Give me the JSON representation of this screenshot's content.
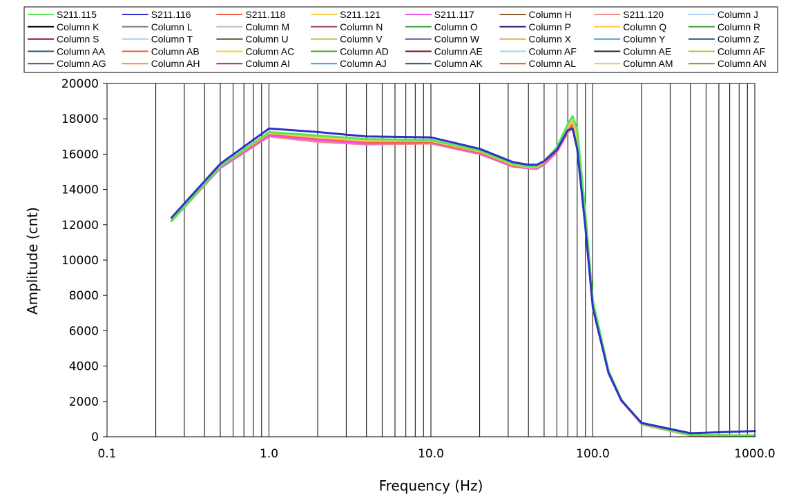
{
  "chart_data": {
    "type": "line",
    "xlabel": "Frequency (Hz)",
    "ylabel": "Amplitude  (cnt)",
    "x_scale": "log",
    "xlim": [
      0.1,
      1000
    ],
    "ylim": [
      0,
      20000
    ],
    "x_ticks": [
      0.1,
      1,
      10,
      100,
      1000
    ],
    "x_tick_labels": [
      "0.1",
      "1.0",
      "10.0",
      "100.0",
      "1000.0"
    ],
    "y_ticks": [
      0,
      2000,
      4000,
      6000,
      8000,
      10000,
      12000,
      14000,
      16000,
      18000,
      20000
    ],
    "y_tick_labels": [
      "0",
      "2000",
      "4000",
      "6000",
      "8000",
      "10000",
      "12000",
      "14000",
      "16000",
      "18000",
      "20000"
    ],
    "grid": "vertical",
    "legend_position": "top",
    "legend": [
      {
        "name": "S211.115",
        "color": "#55e655"
      },
      {
        "name": "S211.116",
        "color": "#3030c8"
      },
      {
        "name": "S211.118",
        "color": "#f06040"
      },
      {
        "name": "S211.121",
        "color": "#f8c850"
      },
      {
        "name": "S211.117",
        "color": "#f050f0"
      },
      {
        "name": "Column H",
        "color": "#8b5a2b"
      },
      {
        "name": "S211.120",
        "color": "#f08c8c"
      },
      {
        "name": "Column J",
        "color": "#a8d0f0"
      },
      {
        "name": "Column K",
        "color": "#000000"
      },
      {
        "name": "Column L",
        "color": "#808080"
      },
      {
        "name": "Column M",
        "color": "#c0c0c0"
      },
      {
        "name": "Column N",
        "color": "#a04068"
      },
      {
        "name": "Column O",
        "color": "#40a040"
      },
      {
        "name": "Column P",
        "color": "#202080"
      },
      {
        "name": "Column Q",
        "color": "#ffc840"
      },
      {
        "name": "Column R",
        "color": "#40a040"
      },
      {
        "name": "Column S",
        "color": "#800020"
      },
      {
        "name": "Column T",
        "color": "#90d0f0"
      },
      {
        "name": "Column U",
        "color": "#305020"
      },
      {
        "name": "Column V",
        "color": "#a0c840"
      },
      {
        "name": "Column W",
        "color": "#6040a0"
      },
      {
        "name": "Column X",
        "color": "#f0a040"
      },
      {
        "name": "Column Y",
        "color": "#30a0c0"
      },
      {
        "name": "Column Z",
        "color": "#104080"
      },
      {
        "name": "Column AA",
        "color": "#206080"
      },
      {
        "name": "Column AB",
        "color": "#f06030"
      },
      {
        "name": "Column AC",
        "color": "#f8d040"
      },
      {
        "name": "Column AD",
        "color": "#50a030"
      },
      {
        "name": "Column AE",
        "color": "#801020"
      },
      {
        "name": "Column AF",
        "color": "#a0d8f0"
      },
      {
        "name": "Column AE",
        "color": "#203020"
      },
      {
        "name": "Column AF",
        "color": "#b0c840"
      },
      {
        "name": "Column AG",
        "color": "#604080"
      },
      {
        "name": "Column AH",
        "color": "#f09040"
      },
      {
        "name": "Column AI",
        "color": "#c02040"
      },
      {
        "name": "Column AJ",
        "color": "#30a0d0"
      },
      {
        "name": "Column AK",
        "color": "#205070"
      },
      {
        "name": "Column AL",
        "color": "#f05030"
      },
      {
        "name": "Column AM",
        "color": "#f8c840"
      },
      {
        "name": "Column AN",
        "color": "#60a030"
      }
    ],
    "x": [
      0.25,
      0.5,
      1,
      2,
      4,
      10,
      20,
      32,
      40,
      45,
      50,
      60,
      70,
      75,
      80,
      90,
      100,
      125,
      150,
      200,
      400,
      1000
    ],
    "series": [
      {
        "name": "S211.120",
        "color": "#f08c8c",
        "values": [
          12200,
          15200,
          17000,
          16700,
          16550,
          16600,
          16000,
          15300,
          15200,
          15150,
          15400,
          16100,
          17200,
          17500,
          16400,
          12000,
          7400,
          3600,
          2050,
          700,
          80,
          60
        ]
      },
      {
        "name": "S211.117",
        "color": "#f050f0",
        "values": [
          12250,
          15250,
          17050,
          16800,
          16600,
          16650,
          16050,
          15300,
          15200,
          15200,
          15450,
          16200,
          17350,
          17650,
          16500,
          12100,
          7450,
          3650,
          2050,
          710,
          85,
          60
        ]
      },
      {
        "name": "S211.118",
        "color": "#f06040",
        "values": [
          12250,
          15300,
          17150,
          16900,
          16700,
          16700,
          16100,
          15350,
          15250,
          15250,
          15500,
          16250,
          17400,
          17750,
          16700,
          12200,
          7500,
          3700,
          2080,
          720,
          90,
          70
        ]
      },
      {
        "name": "S211.121",
        "color": "#f8c850",
        "values": [
          12250,
          15300,
          17200,
          16950,
          16750,
          16750,
          16150,
          15400,
          15250,
          15250,
          15550,
          16300,
          17500,
          17900,
          16900,
          12300,
          7550,
          3700,
          2080,
          720,
          90,
          80
        ]
      },
      {
        "name": "S211.115",
        "color": "#55e655",
        "values": [
          12200,
          15300,
          17250,
          17050,
          16850,
          16800,
          16200,
          15450,
          15300,
          15300,
          15600,
          16400,
          17700,
          18150,
          17400,
          12600,
          7700,
          3750,
          2100,
          730,
          100,
          70
        ]
      },
      {
        "name": "S211.116",
        "color": "#3030c8",
        "values": [
          12400,
          15450,
          17450,
          17250,
          17000,
          16950,
          16300,
          15550,
          15400,
          15400,
          15600,
          16250,
          17350,
          17450,
          16300,
          11800,
          7300,
          3600,
          2050,
          780,
          200,
          320
        ]
      }
    ]
  }
}
